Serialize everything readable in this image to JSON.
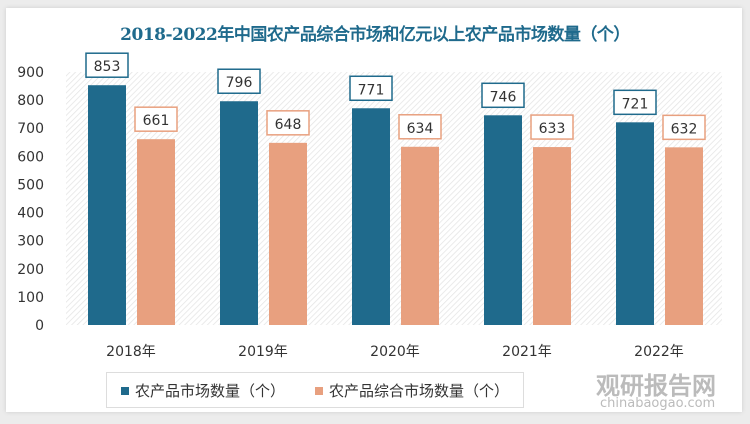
{
  "chart_data": {
    "type": "bar",
    "title": "2018-2022年中国农产品综合市场和亿元以上农产品市场数量（个）",
    "categories": [
      "2018年",
      "2019年",
      "2020年",
      "2021年",
      "2022年"
    ],
    "series": [
      {
        "name": "农产品市场数量（个）",
        "values": [
          853,
          796,
          771,
          746,
          721
        ],
        "color": "#1f6a8c"
      },
      {
        "name": "农产品综合市场数量（个）",
        "values": [
          661,
          648,
          634,
          633,
          632
        ],
        "color": "#e8a07f"
      }
    ],
    "ylim": [
      0,
      900
    ],
    "yticks": [
      0,
      100,
      200,
      300,
      400,
      500,
      600,
      700,
      800,
      900
    ],
    "legend": "bottom",
    "grid": false
  },
  "watermark": {
    "name": "观研报告网",
    "url": "chinabaogao.com"
  }
}
